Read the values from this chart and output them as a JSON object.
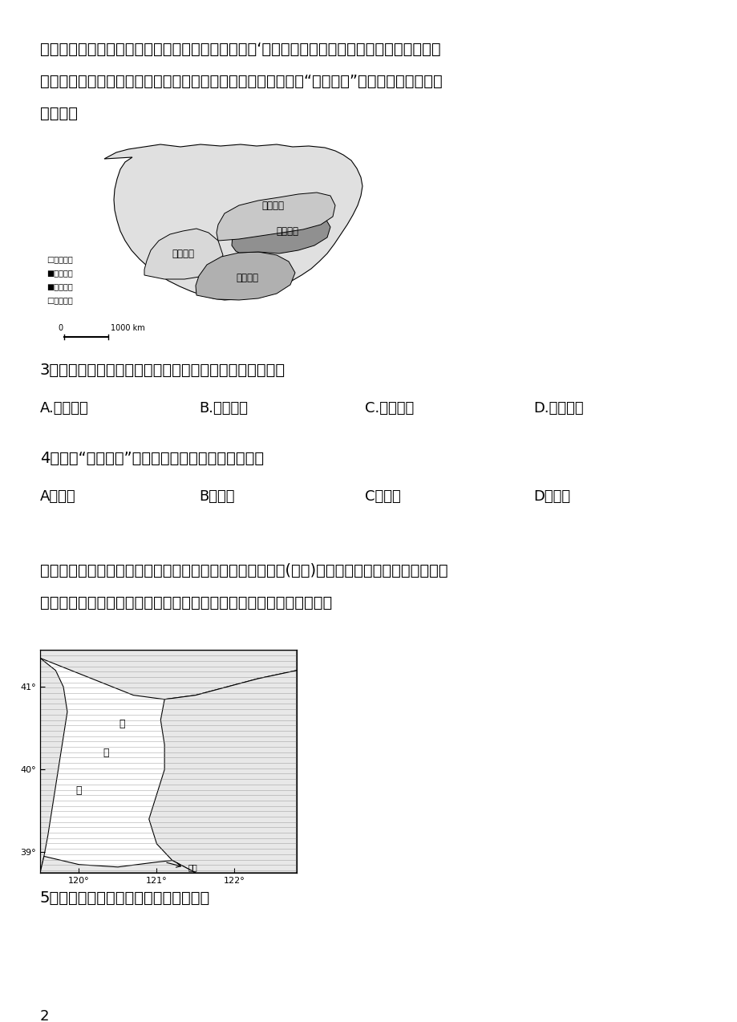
{
  "background_color": "#ffffff",
  "top_text_lines": [
    "种茶的地形须选择在背风向阳半山坡，并把好三关：‘即播种质量关、出苗关和越冬关．目前山东",
    "海滨地区青岛、日照是山东绿茶最主要生产基地．下图示意我国“四大茶区”的分布．据此完成下",
    "列各题。"
  ],
  "q3_text": "3．推测四大茶区中，生产年限长的古老茶树最多的茶区是",
  "q3_options": [
    "A.华南茶区",
    "B.西南茶区",
    "C.江南茶区",
    "D.江北茶区"
  ],
  "q4_text": "4．山东“南茶北引”种茶地的选择主要考虑的因素是",
  "q4_options": [
    "A．气候",
    "B．地形",
    "C．土壤",
    "D．水源"
  ],
  "para2_lines": [
    "海水含盐量接近淡水，适当处理后可作为淡水资源。辽东湾(如图)是我国水温最低、冰情最重、海",
    "冰资源分布最多的海区，但目前仍未大规模开发，据此完成下面小题。"
  ],
  "q5_text": "5．辽东湾海面冬季易结冰的主要原因有",
  "page_number": "2",
  "font_size_body": 14,
  "font_size_options": 13
}
